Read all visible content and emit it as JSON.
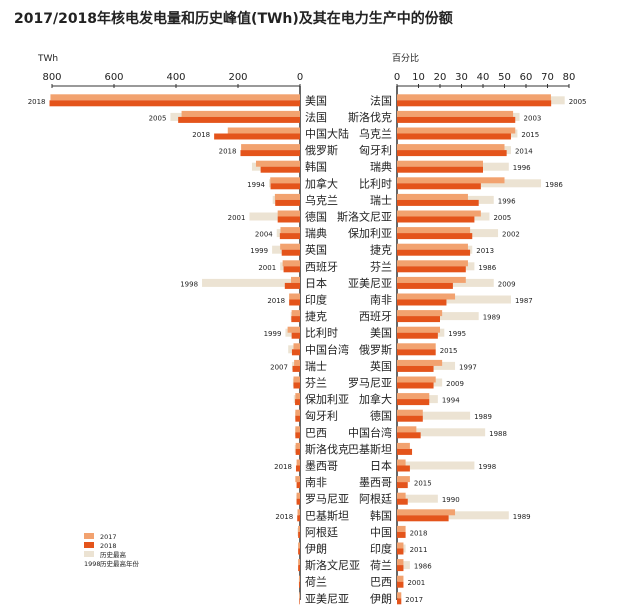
{
  "title": "2017/2018年核电发电量和历史峰值(TWh)及其在电力生产中的份额",
  "colors": {
    "v2017": "#f2a26f",
    "v2018": "#e4541b",
    "peak": "#ece3d3",
    "text": "#222222",
    "axis": "#333333"
  },
  "legend": {
    "items": [
      {
        "key": "v2017",
        "label": "2017"
      },
      {
        "key": "v2018",
        "label": "2018"
      },
      {
        "key": "peak",
        "label": "历史最高"
      },
      {
        "key": "peak_year",
        "sample": "1998",
        "label": "历史最高年份"
      }
    ]
  },
  "chart_data": [
    {
      "type": "bar",
      "orientation": "horizontal",
      "direction": "right-to-left",
      "unit_label": "TWh",
      "xlim": [
        0,
        800
      ],
      "xticks": [
        800,
        600,
        400,
        200,
        0
      ],
      "series": [
        {
          "key": "peak"
        },
        {
          "key": "v2017",
          "name": "2017"
        },
        {
          "key": "v2018",
          "name": "2018"
        }
      ],
      "rows": [
        {
          "label": "美国",
          "v2017": 805,
          "v2018": 808,
          "peak": 808,
          "peak_year": "2018"
        },
        {
          "label": "法国",
          "v2017": 382,
          "v2018": 393,
          "peak": 418,
          "peak_year": "2005"
        },
        {
          "label": "中国大陆",
          "v2017": 233,
          "v2018": 277,
          "peak": 277,
          "peak_year": "2018"
        },
        {
          "label": "俄罗斯",
          "v2017": 190,
          "v2018": 192,
          "peak": 192,
          "peak_year": "2018"
        },
        {
          "label": "韩国",
          "v2017": 142,
          "v2018": 127,
          "peak": 155,
          "peak_year": ""
        },
        {
          "label": "加拿大",
          "v2017": 96,
          "v2018": 95,
          "peak": 100,
          "peak_year": "1994"
        },
        {
          "label": "乌克兰",
          "v2017": 81,
          "v2018": 80,
          "peak": 88,
          "peak_year": ""
        },
        {
          "label": "德国",
          "v2017": 72,
          "v2018": 72,
          "peak": 163,
          "peak_year": "2001"
        },
        {
          "label": "瑞典",
          "v2017": 63,
          "v2018": 65,
          "peak": 75,
          "peak_year": "2004"
        },
        {
          "label": "英国",
          "v2017": 64,
          "v2018": 59,
          "peak": 90,
          "peak_year": "1999"
        },
        {
          "label": "西班牙",
          "v2017": 56,
          "v2018": 53,
          "peak": 64,
          "peak_year": "2001"
        },
        {
          "label": "日本",
          "v2017": 29,
          "v2018": 49,
          "peak": 316,
          "peak_year": "1998"
        },
        {
          "label": "印度",
          "v2017": 35,
          "v2018": 35,
          "peak": 35,
          "peak_year": "2018"
        },
        {
          "label": "捷克",
          "v2017": 27,
          "v2018": 28,
          "peak": 30,
          "peak_year": ""
        },
        {
          "label": "比利时",
          "v2017": 40,
          "v2018": 27,
          "peak": 47,
          "peak_year": "1999"
        },
        {
          "label": "中国台湾",
          "v2017": 21,
          "v2018": 26,
          "peak": 38,
          "peak_year": ""
        },
        {
          "label": "瑞士",
          "v2017": 19,
          "v2018": 24,
          "peak": 26,
          "peak_year": "2007"
        },
        {
          "label": "芬兰",
          "v2017": 21,
          "v2018": 21,
          "peak": 23,
          "peak_year": ""
        },
        {
          "label": "保加利亚",
          "v2017": 15,
          "v2018": 16,
          "peak": 20,
          "peak_year": ""
        },
        {
          "label": "匈牙利",
          "v2017": 15,
          "v2018": 15,
          "peak": 16,
          "peak_year": ""
        },
        {
          "label": "巴西",
          "v2017": 15,
          "v2018": 15,
          "peak": 16,
          "peak_year": ""
        },
        {
          "label": "斯洛伐克",
          "v2017": 14,
          "v2018": 14,
          "peak": 17,
          "peak_year": ""
        },
        {
          "label": "墨西哥",
          "v2017": 11,
          "v2018": 13,
          "peak": 13,
          "peak_year": "2018"
        },
        {
          "label": "南非",
          "v2017": 15,
          "v2018": 11,
          "peak": 15,
          "peak_year": ""
        },
        {
          "label": "罗马尼亚",
          "v2017": 11,
          "v2018": 11,
          "peak": 12,
          "peak_year": ""
        },
        {
          "label": "巴基斯坦",
          "v2017": 8,
          "v2018": 9,
          "peak": 9,
          "peak_year": "2018"
        },
        {
          "label": "阿根廷",
          "v2017": 6,
          "v2018": 6,
          "peak": 8,
          "peak_year": ""
        },
        {
          "label": "伊朗",
          "v2017": 6,
          "v2018": 6,
          "peak": 6,
          "peak_year": ""
        },
        {
          "label": "斯洛文尼亚",
          "v2017": 6,
          "v2018": 6,
          "peak": 6,
          "peak_year": ""
        },
        {
          "label": "荷兰",
          "v2017": 3,
          "v2018": 3,
          "peak": 4,
          "peak_year": ""
        },
        {
          "label": "亚美尼亚",
          "v2017": 2,
          "v2018": 2,
          "peak": 3,
          "peak_year": ""
        }
      ]
    },
    {
      "type": "bar",
      "orientation": "horizontal",
      "direction": "left-to-right",
      "unit_label": "百分比",
      "xlim": [
        0,
        80
      ],
      "xticks": [
        0,
        10,
        20,
        30,
        40,
        50,
        60,
        70,
        80
      ],
      "series": [
        {
          "key": "peak"
        },
        {
          "key": "v2017",
          "name": "2017"
        },
        {
          "key": "v2018",
          "name": "2018"
        }
      ],
      "rows": [
        {
          "label": "法国",
          "v2017": 71.6,
          "v2018": 71.7,
          "peak": 78,
          "peak_year": "2005"
        },
        {
          "label": "斯洛伐克",
          "v2017": 54,
          "v2018": 55,
          "peak": 57,
          "peak_year": "2003"
        },
        {
          "label": "乌克兰",
          "v2017": 55,
          "v2018": 53,
          "peak": 56,
          "peak_year": "2015"
        },
        {
          "label": "匈牙利",
          "v2017": 50,
          "v2018": 51,
          "peak": 53,
          "peak_year": "2014"
        },
        {
          "label": "瑞典",
          "v2017": 40,
          "v2018": 40,
          "peak": 52,
          "peak_year": "1996"
        },
        {
          "label": "比利时",
          "v2017": 50,
          "v2018": 39,
          "peak": 67,
          "peak_year": "1986"
        },
        {
          "label": "瑞士",
          "v2017": 33,
          "v2018": 38,
          "peak": 45,
          "peak_year": "1996"
        },
        {
          "label": "斯洛文尼亚",
          "v2017": 39,
          "v2018": 36,
          "peak": 43,
          "peak_year": "2005"
        },
        {
          "label": "保加利亚",
          "v2017": 34,
          "v2018": 35,
          "peak": 47,
          "peak_year": "2002"
        },
        {
          "label": "捷克",
          "v2017": 33,
          "v2018": 34,
          "peak": 35,
          "peak_year": "2013"
        },
        {
          "label": "芬兰",
          "v2017": 33,
          "v2018": 32,
          "peak": 36,
          "peak_year": "1986"
        },
        {
          "label": "亚美尼亚",
          "v2017": 32,
          "v2018": 26,
          "peak": 45,
          "peak_year": "2009"
        },
        {
          "label": "南非",
          "v2017": 27,
          "v2018": 23,
          "peak": 53,
          "peak_year": "1987"
        },
        {
          "label": "西班牙",
          "v2017": 21,
          "v2018": 20,
          "peak": 38,
          "peak_year": "1989"
        },
        {
          "label": "美国",
          "v2017": 20,
          "v2018": 19,
          "peak": 22,
          "peak_year": "1995"
        },
        {
          "label": "俄罗斯",
          "v2017": 18,
          "v2018": 18,
          "peak": 18,
          "peak_year": "2015"
        },
        {
          "label": "英国",
          "v2017": 21,
          "v2018": 17,
          "peak": 27,
          "peak_year": "1997"
        },
        {
          "label": "罗马尼亚",
          "v2017": 18,
          "v2018": 17,
          "peak": 21,
          "peak_year": "2009"
        },
        {
          "label": "加拿大",
          "v2017": 15,
          "v2018": 15,
          "peak": 19,
          "peak_year": "1994"
        },
        {
          "label": "德国",
          "v2017": 12,
          "v2018": 12,
          "peak": 34,
          "peak_year": "1989"
        },
        {
          "label": "中国台湾",
          "v2017": 9,
          "v2018": 11,
          "peak": 41,
          "peak_year": "1988"
        },
        {
          "label": "巴基斯坦",
          "v2017": 6,
          "v2018": 7,
          "peak": 7,
          "peak_year": ""
        },
        {
          "label": "日本",
          "v2017": 4,
          "v2018": 6,
          "peak": 36,
          "peak_year": "1998"
        },
        {
          "label": "墨西哥",
          "v2017": 6,
          "v2018": 5,
          "peak": 6,
          "peak_year": "2015"
        },
        {
          "label": "阿根廷",
          "v2017": 4,
          "v2018": 5,
          "peak": 19,
          "peak_year": "1990"
        },
        {
          "label": "韩国",
          "v2017": 27,
          "v2018": 24,
          "peak": 52,
          "peak_year": "1989"
        },
        {
          "label": "中国",
          "v2017": 4,
          "v2018": 4,
          "peak": 4,
          "peak_year": "2018"
        },
        {
          "label": "印度",
          "v2017": 3,
          "v2018": 3,
          "peak": 4,
          "peak_year": "2011"
        },
        {
          "label": "荷兰",
          "v2017": 3,
          "v2018": 3,
          "peak": 6,
          "peak_year": "1986"
        },
        {
          "label": "巴西",
          "v2017": 3,
          "v2018": 3,
          "peak": 3,
          "peak_year": "2001"
        },
        {
          "label": "伊朗",
          "v2017": 2,
          "v2018": 2,
          "peak": 2,
          "peak_year": "2017"
        }
      ]
    }
  ]
}
